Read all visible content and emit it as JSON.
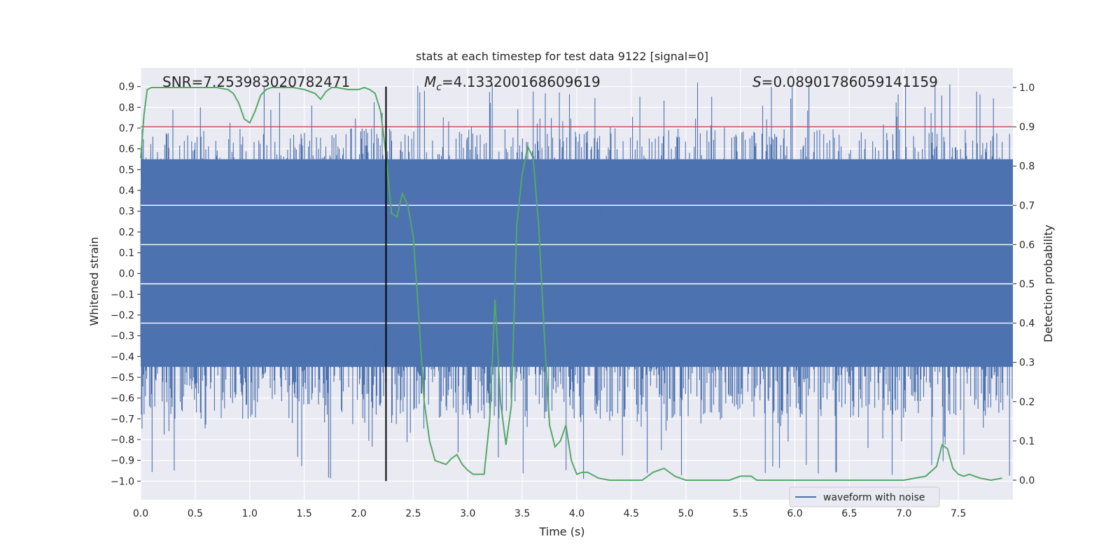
{
  "chart_data": {
    "type": "line",
    "title": "stats at each timestep for test data 9122 [signal=0]",
    "xlabel": "Time (s)",
    "ylabel_left": "Whitened strain",
    "ylabel_right": "Detection probability",
    "xlim": [
      0.0,
      8.0
    ],
    "ylim_left": [
      -1.09,
      0.99
    ],
    "ylim_right": [
      -0.05,
      1.05
    ],
    "grid": true,
    "x_ticks": [
      "0.0",
      "0.5",
      "1.0",
      "1.5",
      "2.0",
      "2.5",
      "3.0",
      "3.5",
      "4.0",
      "4.5",
      "5.0",
      "5.5",
      "6.0",
      "6.5",
      "7.0",
      "7.5"
    ],
    "x_tick_values": [
      0.0,
      0.5,
      1.0,
      1.5,
      2.0,
      2.5,
      3.0,
      3.5,
      4.0,
      4.5,
      5.0,
      5.5,
      6.0,
      6.5,
      7.0,
      7.5
    ],
    "y_left_ticks": [
      "0.9",
      "0.8",
      "0.7",
      "0.6",
      "0.5",
      "0.4",
      "0.3",
      "0.2",
      "0.1",
      "0.0",
      "−0.1",
      "−0.2",
      "−0.3",
      "−0.4",
      "−0.5",
      "−0.6",
      "−0.7",
      "−0.8",
      "−0.9",
      "−1.0"
    ],
    "y_left_tick_values": [
      0.9,
      0.8,
      0.7,
      0.6,
      0.5,
      0.4,
      0.3,
      0.2,
      0.1,
      0.0,
      -0.1,
      -0.2,
      -0.3,
      -0.4,
      -0.5,
      -0.6,
      -0.7,
      -0.8,
      -0.9,
      -1.0
    ],
    "y_right_ticks": [
      "1.0",
      "0.9",
      "0.8",
      "0.7",
      "0.6",
      "0.5",
      "0.4",
      "0.3",
      "0.2",
      "0.1",
      "0.0"
    ],
    "y_right_tick_values": [
      1.0,
      0.9,
      0.8,
      0.7,
      0.6,
      0.5,
      0.4,
      0.3,
      0.2,
      0.1,
      0.0
    ],
    "annotations": {
      "snr": "SNR=7.253983020782471",
      "mc_symbol": "M",
      "mc_sub": "c",
      "mc_value": "=4.133200168609619",
      "s_symbol": "S",
      "s_value": "=0.08901786059141159"
    },
    "threshold": {
      "axis": "right",
      "value": 0.9,
      "color": "#c44e52"
    },
    "vertical_marker": {
      "x": 2.25,
      "color": "#000000"
    },
    "waveform": {
      "name": "waveform with noise",
      "color": "#4c72b0",
      "core_range": [
        -0.45,
        0.55
      ],
      "max_abs": 1.0
    },
    "series": [
      {
        "name": "detection probability",
        "axis": "right",
        "color": "#55a868",
        "x": [
          0.0,
          0.03,
          0.06,
          0.1,
          0.15,
          0.2,
          0.3,
          0.4,
          0.5,
          0.6,
          0.7,
          0.8,
          0.85,
          0.9,
          0.95,
          1.0,
          1.05,
          1.1,
          1.15,
          1.2,
          1.3,
          1.4,
          1.5,
          1.6,
          1.65,
          1.7,
          1.75,
          1.8,
          1.9,
          2.0,
          2.05,
          2.1,
          2.15,
          2.2,
          2.25,
          2.3,
          2.35,
          2.4,
          2.45,
          2.5,
          2.55,
          2.6,
          2.65,
          2.7,
          2.75,
          2.8,
          2.85,
          2.9,
          2.95,
          3.0,
          3.05,
          3.1,
          3.15,
          3.2,
          3.25,
          3.3,
          3.35,
          3.4,
          3.45,
          3.5,
          3.55,
          3.6,
          3.65,
          3.7,
          3.75,
          3.8,
          3.85,
          3.9,
          3.95,
          4.0,
          4.05,
          4.1,
          4.2,
          4.3,
          4.4,
          4.5,
          4.6,
          4.7,
          4.8,
          4.9,
          5.0,
          5.1,
          5.2,
          5.3,
          5.4,
          5.5,
          5.6,
          5.65,
          5.7,
          5.8,
          5.9,
          6.0,
          6.2,
          6.4,
          6.6,
          6.8,
          7.0,
          7.1,
          7.2,
          7.3,
          7.35,
          7.4,
          7.45,
          7.5,
          7.55,
          7.6,
          7.7,
          7.8,
          7.9
        ],
        "values": [
          0.82,
          0.93,
          0.995,
          1.0,
          1.0,
          1.0,
          1.0,
          1.0,
          1.0,
          1.0,
          1.0,
          0.995,
          0.985,
          0.96,
          0.92,
          0.91,
          0.94,
          0.98,
          0.995,
          1.0,
          1.0,
          1.0,
          0.995,
          0.985,
          0.97,
          0.99,
          1.0,
          1.0,
          0.995,
          0.995,
          1.0,
          0.995,
          0.985,
          0.94,
          0.83,
          0.68,
          0.67,
          0.73,
          0.7,
          0.62,
          0.42,
          0.2,
          0.1,
          0.05,
          0.045,
          0.04,
          0.055,
          0.065,
          0.04,
          0.025,
          0.015,
          0.015,
          0.015,
          0.15,
          0.46,
          0.2,
          0.09,
          0.19,
          0.65,
          0.78,
          0.85,
          0.82,
          0.65,
          0.38,
          0.14,
          0.085,
          0.1,
          0.14,
          0.05,
          0.015,
          0.02,
          0.02,
          0.005,
          0.0,
          0.0,
          0.0,
          0.0,
          0.02,
          0.03,
          0.01,
          0.0,
          0.0,
          0.0,
          0.0,
          0.0,
          0.01,
          0.01,
          0.0,
          0.0,
          0.0,
          0.0,
          0.0,
          0.0,
          0.0,
          0.0,
          0.0,
          0.0,
          0.005,
          0.01,
          0.035,
          0.09,
          0.08,
          0.03,
          0.015,
          0.01,
          0.015,
          0.005,
          0.0,
          0.005
        ]
      }
    ],
    "legend": {
      "label": "waveform with noise",
      "placement": "lower-right"
    }
  }
}
